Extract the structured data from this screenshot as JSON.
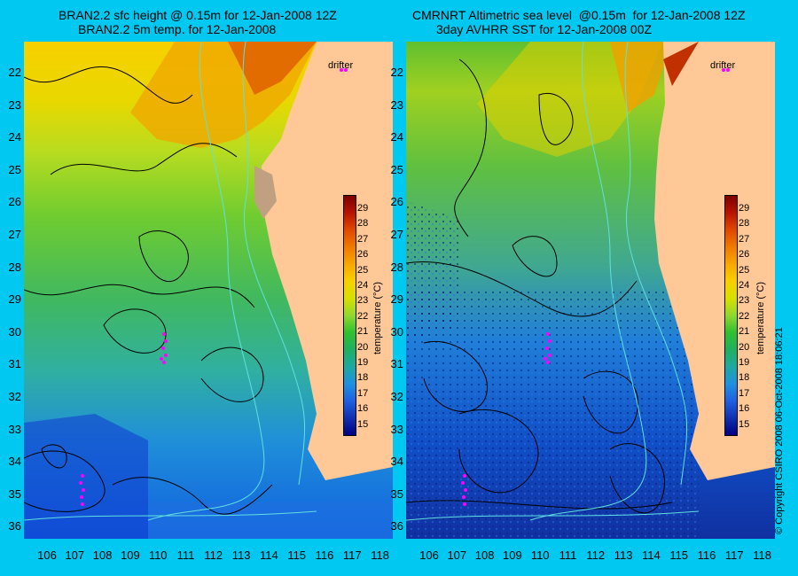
{
  "left_panel": {
    "title_line1": "BRAN2.2 sfc height @ 0.15m for 12-Jan-2008 12Z",
    "title_line2": "BRAN2.2 5m temp. for 12-Jan-2008"
  },
  "right_panel": {
    "title_line1": "CMRNRT Altimetric sea level  @0.15m  for 12-Jan-2008 12Z",
    "title_line2": "3day AVHRR SST for 12-Jan-2008 00Z"
  },
  "latitude_ticks": [
    "22",
    "23",
    "24",
    "25",
    "26",
    "27",
    "28",
    "29",
    "30",
    "31",
    "32",
    "33",
    "34",
    "35",
    "36"
  ],
  "longitude_ticks": [
    "106",
    "107",
    "108",
    "109",
    "110",
    "111",
    "112",
    "113",
    "114",
    "115",
    "116",
    "117",
    "118"
  ],
  "colorbar": {
    "title": "temperature (°C)",
    "ticks": [
      "29",
      "28",
      "27",
      "26",
      "25",
      "24",
      "23",
      "22",
      "21",
      "20",
      "19",
      "18",
      "17",
      "16",
      "15"
    ],
    "colors": [
      "#7a0000",
      "#b81400",
      "#e04800",
      "#f07a00",
      "#f8a800",
      "#f8d000",
      "#d8e000",
      "#90d830",
      "#30c030",
      "#20b060",
      "#20a8a0",
      "#2090e0",
      "#2060e0",
      "#1030b0",
      "#000080"
    ]
  },
  "drifter_label": "drifter",
  "copyright": "© Copyright CSIRO 2008   06-Oct-2008 18:06:21",
  "colors": {
    "background": "#00c8f0",
    "land": "#ffc896",
    "drifter_track": "#ff00ff",
    "contour": "#000000",
    "isobath": "#60e0e0"
  }
}
